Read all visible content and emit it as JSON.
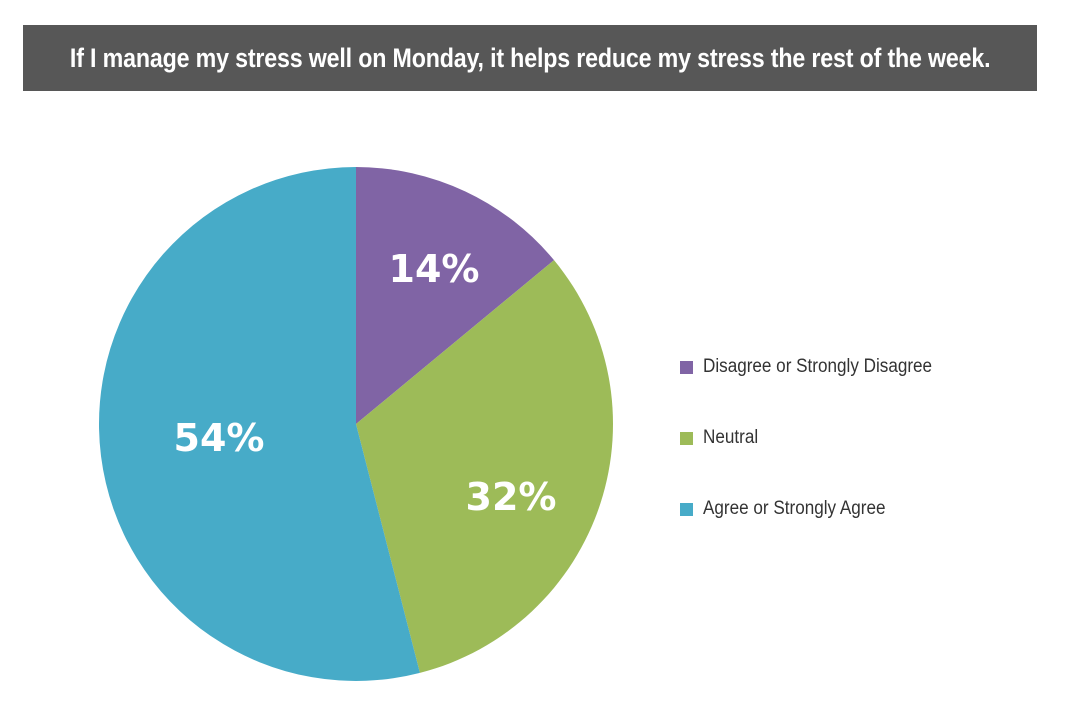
{
  "chart_data": {
    "type": "pie",
    "title": "If I manage my stress well on Monday, it helps reduce my stress the rest of the week.",
    "slices": [
      {
        "name": "Disagree or Strongly Disagree",
        "value": 14,
        "label": "14%",
        "color": "#8064a5"
      },
      {
        "name": "Neutral",
        "value": 32,
        "label": "32%",
        "color": "#9dbb58"
      },
      {
        "name": "Agree or Strongly Agree",
        "value": 54,
        "label": "54%",
        "color": "#47abc8"
      }
    ],
    "legend_placement": "right"
  }
}
